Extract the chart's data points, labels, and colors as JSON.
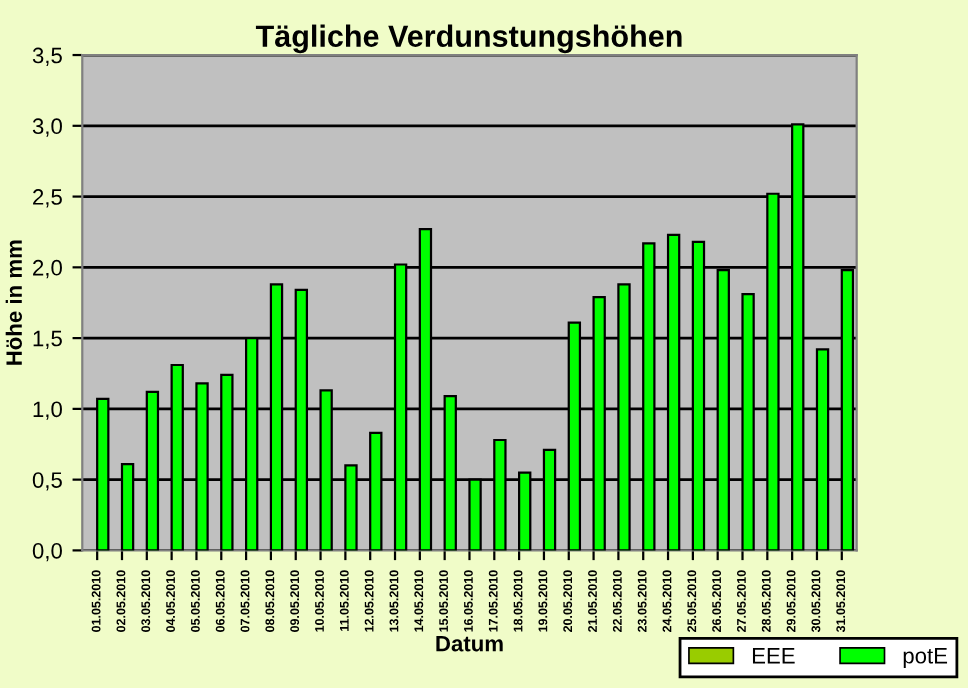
{
  "chart_data": {
    "type": "bar",
    "title": "Tägliche Verdunstungshöhen",
    "xlabel": "Datum",
    "ylabel": "Höhe in mm",
    "categories": [
      "01.05.2010",
      "02.05.2010",
      "03.05.2010",
      "04.05.2010",
      "05.05.2010",
      "06.05.2010",
      "07.05.2010",
      "08.05.2010",
      "09.05.2010",
      "10.05.2010",
      "11.05.2010",
      "12.05.2010",
      "13.05.2010",
      "14.05.2010",
      "15.05.2010",
      "16.05.2010",
      "17.05.2010",
      "18.05.2010",
      "19.05.2010",
      "20.05.2010",
      "21.05.2010",
      "22.05.2010",
      "23.05.2010",
      "24.05.2010",
      "25.05.2010",
      "26.05.2010",
      "27.05.2010",
      "28.05.2010",
      "29.05.2010",
      "30.05.2010",
      "31.05.2010"
    ],
    "series": [
      {
        "name": "EEE",
        "color": "#99cc00",
        "values": [
          null,
          null,
          null,
          null,
          null,
          null,
          null,
          null,
          null,
          null,
          null,
          null,
          null,
          null,
          null,
          null,
          null,
          null,
          null,
          null,
          null,
          null,
          null,
          null,
          null,
          null,
          null,
          null,
          null,
          null,
          null
        ]
      },
      {
        "name": "potE",
        "color": "#00ff00",
        "values": [
          1.07,
          0.61,
          1.12,
          1.31,
          1.18,
          1.24,
          1.5,
          1.88,
          1.84,
          1.13,
          0.6,
          0.83,
          2.02,
          2.27,
          1.09,
          0.5,
          0.78,
          0.55,
          0.71,
          1.61,
          1.79,
          1.88,
          2.17,
          2.23,
          2.18,
          1.98,
          1.81,
          2.52,
          3.01,
          1.42,
          1.98
        ]
      }
    ],
    "ylim": [
      0,
      3.5
    ],
    "yticks": [
      {
        "value": 0,
        "label": "0,0"
      },
      {
        "value": 0.5,
        "label": "0,5"
      },
      {
        "value": 1,
        "label": "1,0"
      },
      {
        "value": 1.5,
        "label": "1,5"
      },
      {
        "value": 2,
        "label": "2,0"
      },
      {
        "value": 2.5,
        "label": "2,5"
      },
      {
        "value": 3,
        "label": "3,0"
      },
      {
        "value": 3.5,
        "label": "3,5"
      }
    ],
    "grid": "y",
    "legend": "bottom right"
  }
}
